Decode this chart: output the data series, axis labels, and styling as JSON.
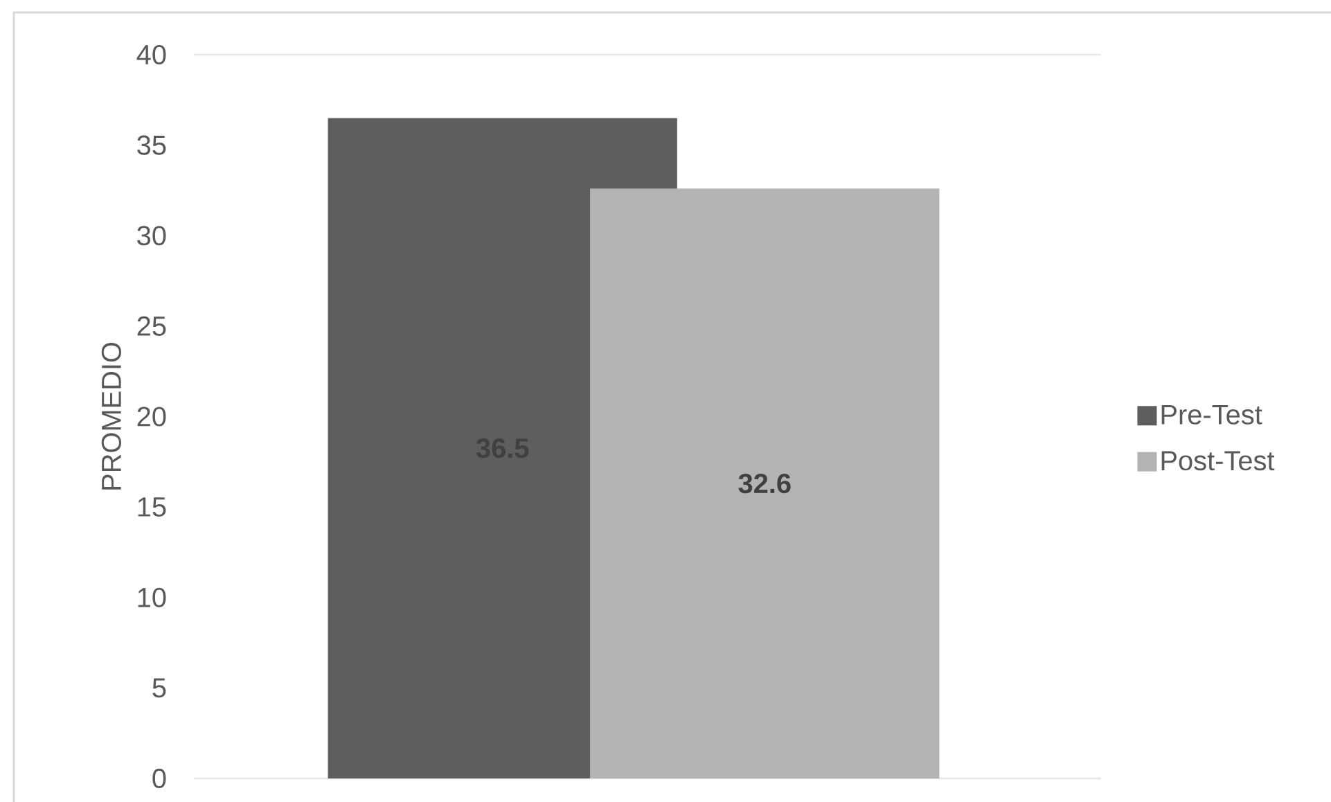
{
  "chart_data": {
    "type": "bar",
    "ylabel": "PROMEDIO",
    "categories": [
      null
    ],
    "series": [
      {
        "name": "Pre-Test",
        "color": "#5e5e5e",
        "values": [
          36.5
        ]
      },
      {
        "name": "Post-Test",
        "color": "#b3b3b3",
        "values": [
          32.6
        ]
      }
    ],
    "ylim": [
      0,
      40
    ],
    "yticks": [
      0,
      5,
      10,
      15,
      20,
      25,
      30,
      35,
      40
    ],
    "data_labels": true,
    "legend": "right"
  }
}
